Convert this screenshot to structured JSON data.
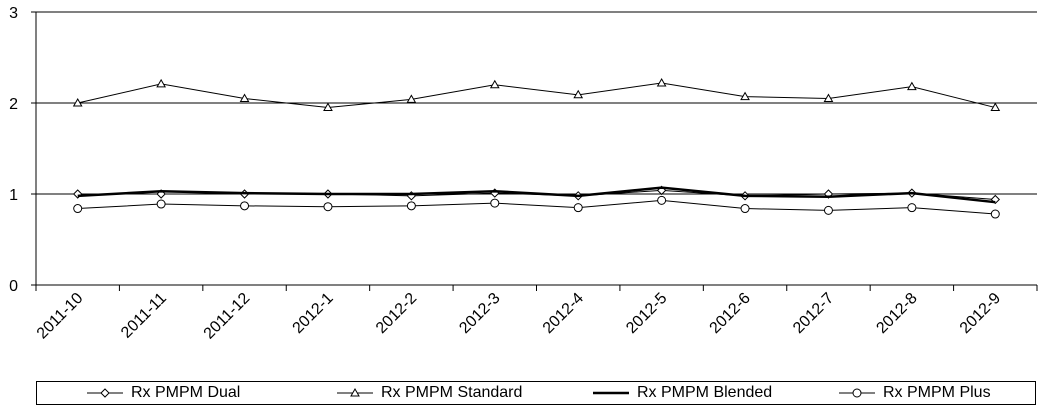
{
  "chart_data": {
    "type": "line",
    "categories": [
      "2011-10",
      "2011-11",
      "2011-12",
      "2012-1",
      "2012-2",
      "2012-3",
      "2012-4",
      "2012-5",
      "2012-6",
      "2012-7",
      "2012-8",
      "2012-9"
    ],
    "series": [
      {
        "name": "Rx PMPM Dual",
        "marker": "diamond",
        "values": [
          1.0,
          1.0,
          1.0,
          1.0,
          0.98,
          1.01,
          0.98,
          1.04,
          0.98,
          1.0,
          1.01,
          0.94
        ]
      },
      {
        "name": "Rx PMPM Standard",
        "marker": "triangle",
        "values": [
          2.0,
          2.21,
          2.05,
          1.95,
          2.04,
          2.2,
          2.09,
          2.22,
          2.07,
          2.05,
          2.18,
          1.95
        ]
      },
      {
        "name": "Rx PMPM Blended",
        "marker": "none",
        "values": [
          0.98,
          1.03,
          1.01,
          1.0,
          1.0,
          1.03,
          0.98,
          1.07,
          0.98,
          0.97,
          1.01,
          0.91
        ]
      },
      {
        "name": "Rx PMPM Plus",
        "marker": "circle",
        "values": [
          0.84,
          0.89,
          0.87,
          0.86,
          0.87,
          0.9,
          0.85,
          0.93,
          0.84,
          0.82,
          0.85,
          0.78
        ]
      }
    ],
    "ylim": [
      0,
      3
    ],
    "yticks": [
      "0",
      "1",
      "2",
      "3"
    ],
    "gridlines": "horizontal",
    "legend_position": "bottom"
  }
}
